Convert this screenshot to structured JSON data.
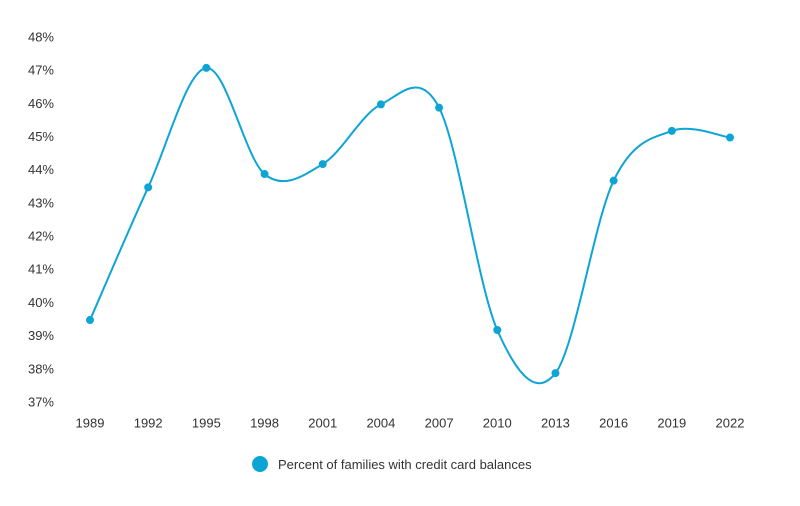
{
  "chart_data": {
    "type": "line",
    "title": "",
    "xlabel": "",
    "ylabel": "",
    "x": [
      "1989",
      "1992",
      "1995",
      "1998",
      "2001",
      "2004",
      "2007",
      "2010",
      "2013",
      "2016",
      "2019",
      "2022"
    ],
    "series": [
      {
        "name": "Percent of families with credit card balances",
        "values": [
          39.5,
          43.5,
          47.1,
          43.9,
          44.2,
          46.0,
          45.9,
          39.2,
          37.9,
          43.7,
          45.2,
          45.0
        ]
      }
    ],
    "ylim": [
      37,
      48
    ],
    "y_ticks": [
      37,
      38,
      39,
      40,
      41,
      42,
      43,
      44,
      45,
      46,
      47,
      48
    ],
    "y_tick_labels": [
      "37%",
      "38%",
      "39%",
      "40%",
      "41%",
      "42%",
      "43%",
      "44%",
      "45%",
      "46%",
      "47%",
      "48%"
    ],
    "grid": false,
    "legend_position": "bottom-center",
    "colors": {
      "series": "#0ea5d6",
      "text": "#333333"
    },
    "legend": {
      "label": "Percent of families with credit card balances"
    }
  }
}
